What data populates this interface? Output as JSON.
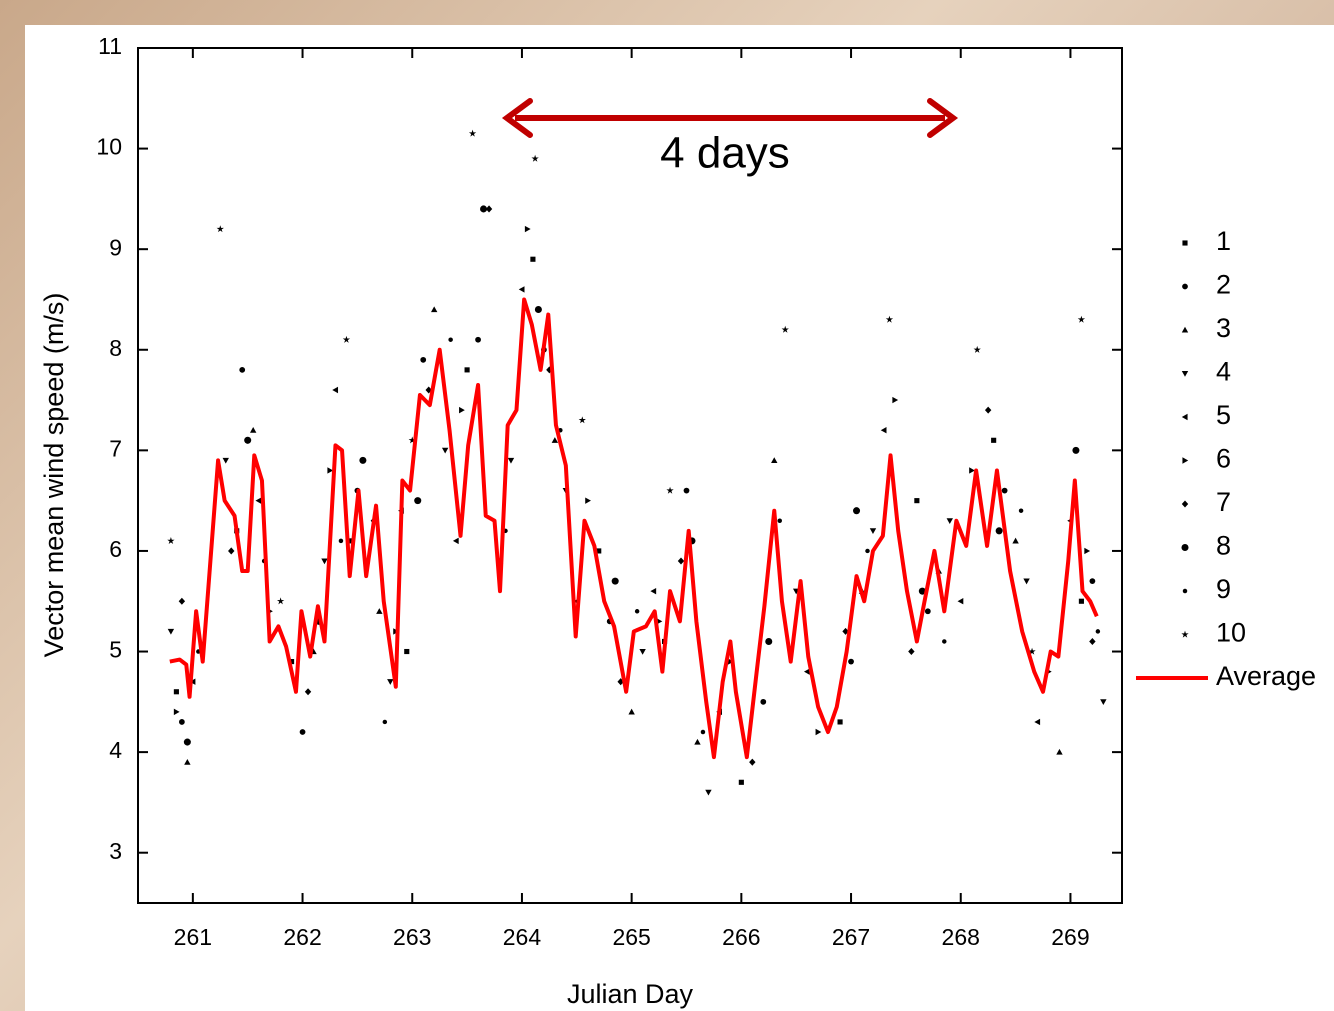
{
  "chart_data": {
    "type": "scatter",
    "x_label": "Julian Day",
    "y_label": "Vector mean wind speed (m/s)",
    "annotation": "4 days",
    "annotation_color": "#c00000",
    "xlim": [
      260.5,
      269.47
    ],
    "ylim": [
      2.5,
      11
    ],
    "xticks": [
      261,
      262,
      263,
      264,
      265,
      266,
      267,
      268,
      269
    ],
    "yticks": [
      3,
      4,
      5,
      6,
      7,
      8,
      9,
      10,
      11
    ],
    "legend": "right",
    "series": [
      {
        "name": "1",
        "color": "#000000",
        "marker": "square",
        "x": [
          260.85,
          261.4,
          261.9,
          262.45,
          262.95,
          263.5,
          264.1,
          264.7,
          265.3,
          266.0,
          266.9,
          267.6,
          268.3,
          269.1
        ],
        "values": [
          4.6,
          6.2,
          4.9,
          6.1,
          5.0,
          7.8,
          8.9,
          6.0,
          5.1,
          3.7,
          4.3,
          6.5,
          7.1,
          5.5
        ]
      },
      {
        "name": "2",
        "color": "#000000",
        "marker": "circle",
        "x": [
          260.9,
          261.45,
          262.0,
          262.5,
          263.1,
          263.6,
          264.2,
          264.8,
          265.5,
          266.2,
          267.0,
          267.7,
          268.4,
          269.2
        ],
        "values": [
          4.3,
          7.8,
          4.2,
          6.6,
          7.9,
          8.1,
          8.0,
          5.3,
          6.6,
          4.5,
          4.9,
          5.4,
          6.6,
          5.7
        ]
      },
      {
        "name": "3",
        "color": "#000000",
        "marker": "triangle-up",
        "x": [
          260.95,
          261.55,
          262.1,
          262.7,
          263.2,
          263.8,
          264.3,
          265.0,
          265.6,
          266.3,
          267.1,
          267.8,
          268.5,
          268.9
        ],
        "values": [
          3.9,
          7.2,
          5.0,
          5.4,
          8.4,
          5.9,
          7.1,
          4.4,
          4.1,
          6.9,
          5.6,
          5.8,
          6.1,
          4.0
        ]
      },
      {
        "name": "4",
        "color": "#000000",
        "marker": "triangle-down",
        "x": [
          260.8,
          261.3,
          262.2,
          262.8,
          263.3,
          263.9,
          264.4,
          265.1,
          265.7,
          266.5,
          267.2,
          267.9,
          268.6,
          269.3
        ],
        "values": [
          5.2,
          6.9,
          5.9,
          4.7,
          7.0,
          6.9,
          6.6,
          5.0,
          3.6,
          5.6,
          6.2,
          6.3,
          5.7,
          4.5
        ]
      },
      {
        "name": "5",
        "color": "#000000",
        "marker": "triangle-left",
        "x": [
          261.0,
          261.6,
          262.3,
          262.9,
          263.4,
          264.0,
          264.5,
          265.2,
          265.8,
          266.6,
          267.3,
          268.0,
          268.7,
          269.0
        ],
        "values": [
          4.7,
          6.5,
          7.6,
          6.4,
          6.1,
          8.6,
          5.5,
          5.6,
          4.4,
          4.8,
          7.2,
          5.5,
          4.3,
          6.3
        ]
      },
      {
        "name": "6",
        "color": "#000000",
        "marker": "triangle-right",
        "x": [
          260.85,
          261.7,
          262.25,
          262.85,
          263.45,
          264.05,
          264.6,
          265.25,
          265.9,
          266.7,
          267.4,
          268.1,
          268.8,
          269.15
        ],
        "values": [
          4.4,
          5.4,
          6.8,
          5.2,
          7.4,
          9.2,
          6.5,
          5.3,
          4.9,
          4.2,
          7.5,
          6.8,
          4.8,
          6.0
        ]
      },
      {
        "name": "7",
        "color": "#000000",
        "marker": "diamond",
        "x": [
          260.9,
          261.35,
          262.05,
          262.65,
          263.15,
          263.7,
          264.25,
          264.9,
          265.45,
          266.1,
          266.95,
          267.55,
          268.25,
          269.2
        ],
        "values": [
          5.5,
          6.0,
          4.6,
          6.3,
          7.6,
          9.4,
          7.8,
          4.7,
          5.9,
          3.9,
          5.2,
          5.0,
          7.4,
          5.1
        ]
      },
      {
        "name": "8",
        "color": "#000000",
        "marker": "circle-large",
        "x": [
          260.95,
          261.5,
          262.15,
          262.55,
          263.05,
          263.65,
          264.15,
          264.85,
          265.55,
          266.25,
          267.05,
          267.65,
          268.35,
          269.05
        ],
        "values": [
          4.1,
          7.1,
          5.3,
          6.9,
          6.5,
          9.4,
          8.4,
          5.7,
          6.1,
          5.1,
          6.4,
          5.6,
          6.2,
          7.0
        ]
      },
      {
        "name": "9",
        "color": "#000000",
        "marker": "circle-small",
        "x": [
          261.05,
          261.65,
          262.35,
          262.75,
          263.35,
          263.85,
          264.35,
          265.05,
          265.65,
          266.35,
          267.15,
          267.85,
          268.55,
          269.25
        ],
        "values": [
          5.0,
          5.9,
          6.1,
          4.3,
          8.1,
          6.2,
          7.2,
          5.4,
          4.2,
          6.3,
          6.0,
          5.1,
          6.4,
          5.2
        ]
      },
      {
        "name": "10",
        "color": "#000000",
        "marker": "star",
        "x": [
          260.8,
          261.25,
          261.8,
          262.4,
          263.0,
          263.55,
          264.12,
          264.55,
          265.35,
          266.4,
          267.35,
          268.15,
          268.65,
          269.1
        ],
        "values": [
          6.1,
          9.2,
          5.5,
          8.1,
          7.1,
          10.15,
          9.9,
          7.3,
          6.6,
          8.2,
          8.3,
          8.0,
          5.0,
          8.3
        ]
      },
      {
        "name": "Average",
        "color": "#ff0000",
        "marker": "line",
        "x": [
          260.79,
          260.88,
          260.94,
          260.97,
          261.03,
          261.09,
          261.16,
          261.23,
          261.29,
          261.38,
          261.45,
          261.5,
          261.56,
          261.63,
          261.7,
          261.78,
          261.85,
          261.94,
          261.99,
          262.07,
          262.14,
          262.2,
          262.3,
          262.36,
          262.43,
          262.51,
          262.58,
          262.67,
          262.74,
          262.85,
          262.91,
          262.98,
          263.07,
          263.16,
          263.25,
          263.34,
          263.44,
          263.51,
          263.6,
          263.67,
          263.75,
          263.8,
          263.87,
          263.95,
          264.02,
          264.09,
          264.17,
          264.24,
          264.31,
          264.4,
          264.49,
          264.57,
          264.66,
          264.75,
          264.84,
          264.95,
          265.02,
          265.13,
          265.21,
          265.28,
          265.35,
          265.44,
          265.52,
          265.59,
          265.68,
          265.75,
          265.83,
          265.9,
          265.95,
          266.05,
          266.14,
          266.21,
          266.3,
          266.37,
          266.45,
          266.54,
          266.61,
          266.7,
          266.79,
          266.87,
          266.96,
          267.05,
          267.12,
          267.2,
          267.29,
          267.36,
          267.43,
          267.51,
          267.6,
          267.67,
          267.76,
          267.85,
          267.96,
          268.05,
          268.14,
          268.24,
          268.33,
          268.45,
          268.56,
          268.67,
          268.75,
          268.82,
          268.89,
          268.98,
          269.04,
          269.11,
          269.18,
          269.24
        ],
        "values": [
          4.9,
          4.92,
          4.87,
          4.55,
          5.4,
          4.9,
          5.9,
          6.9,
          6.5,
          6.35,
          5.8,
          5.8,
          6.95,
          6.7,
          5.1,
          5.25,
          5.05,
          4.6,
          5.4,
          4.95,
          5.45,
          5.1,
          7.05,
          7.0,
          5.75,
          6.6,
          5.75,
          6.45,
          5.5,
          4.65,
          6.7,
          6.6,
          7.55,
          7.45,
          8.0,
          7.2,
          6.15,
          7.05,
          7.65,
          6.35,
          6.3,
          5.6,
          7.25,
          7.4,
          8.5,
          8.25,
          7.8,
          8.35,
          7.25,
          6.85,
          5.15,
          6.3,
          6.05,
          5.5,
          5.25,
          4.6,
          5.2,
          5.25,
          5.4,
          4.8,
          5.6,
          5.3,
          6.2,
          5.3,
          4.5,
          3.95,
          4.7,
          5.1,
          4.6,
          3.95,
          4.8,
          5.45,
          6.4,
          5.5,
          4.9,
          5.7,
          4.95,
          4.45,
          4.2,
          4.45,
          5.0,
          5.75,
          5.5,
          6.0,
          6.15,
          6.95,
          6.2,
          5.6,
          5.1,
          5.5,
          6.0,
          5.4,
          6.3,
          6.05,
          6.8,
          6.05,
          6.8,
          5.8,
          5.2,
          4.8,
          4.6,
          5.0,
          4.95,
          5.9,
          6.7,
          5.6,
          5.5,
          5.35
        ]
      }
    ]
  }
}
